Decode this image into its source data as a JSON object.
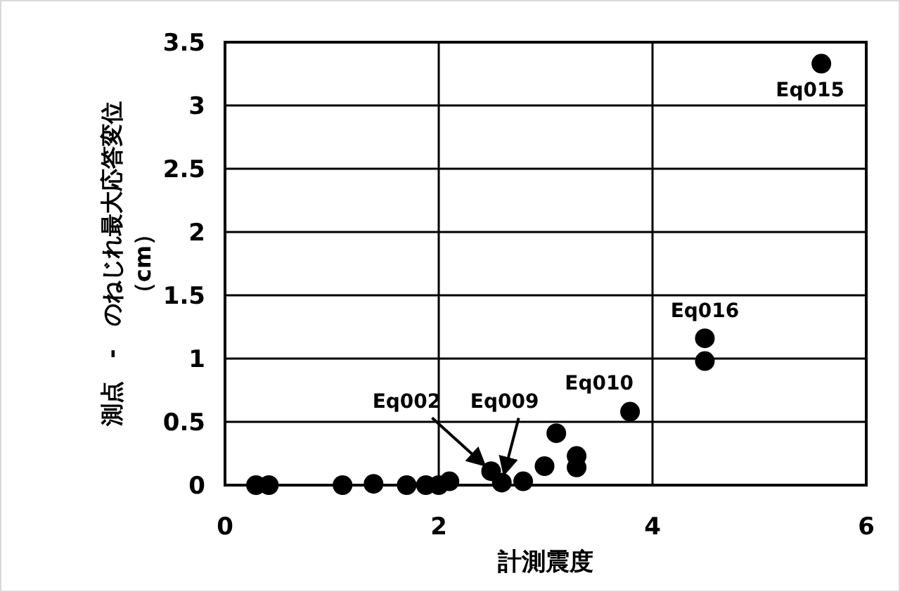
{
  "chart_data": {
    "type": "scatter",
    "xlabel": "計測震度",
    "ylabel": "測点　-　のねじれ最大応答変位（cm）",
    "x": [
      0.29,
      0.41,
      1.1,
      1.39,
      1.7,
      1.88,
      2.0,
      2.1,
      2.49,
      2.59,
      2.79,
      2.99,
      3.1,
      3.29,
      3.29,
      3.79,
      4.49,
      4.49,
      5.58
    ],
    "series": [
      {
        "color": "#000000",
        "values": [
          0,
          0,
          0,
          0.01,
          0,
          0,
          0,
          0.03,
          0.11,
          0.02,
          0.03,
          0.15,
          0.41,
          0.23,
          0.14,
          0.58,
          1.16,
          0.98,
          3.33
        ]
      }
    ],
    "annotations": [
      {
        "text": "Eq015",
        "x": 5.58,
        "y": 3.33
      },
      {
        "text": "Eq016",
        "x": 4.49,
        "y": 1.16
      },
      {
        "text": "Eq010",
        "x": 3.79,
        "y": 0.58
      },
      {
        "text": "Eq002",
        "x": 2.49,
        "y": 0.11
      },
      {
        "text": "Eq009",
        "x": 2.59,
        "y": 0.02
      }
    ],
    "xlim": [
      0,
      6
    ],
    "ylim": [
      0,
      3.5
    ],
    "xticks": [
      0,
      2,
      4,
      6
    ],
    "yticks": [
      0,
      0.5,
      1,
      1.5,
      2,
      2.5,
      3,
      3.5
    ],
    "grid": true,
    "marker": "circle"
  }
}
